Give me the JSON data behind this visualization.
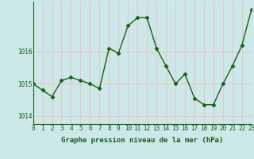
{
  "hours": [
    0,
    1,
    2,
    3,
    4,
    5,
    6,
    7,
    8,
    9,
    10,
    11,
    12,
    13,
    14,
    15,
    16,
    17,
    18,
    19,
    20,
    21,
    22,
    23
  ],
  "pressure": [
    1015.0,
    1014.8,
    1014.6,
    1015.1,
    1015.2,
    1015.1,
    1015.0,
    1014.85,
    1016.1,
    1015.95,
    1016.8,
    1017.05,
    1017.05,
    1016.1,
    1015.55,
    1015.0,
    1015.3,
    1014.55,
    1014.35,
    1014.35,
    1015.0,
    1015.55,
    1016.2,
    1017.3
  ],
  "line_color": "#1a5e1a",
  "marker": "D",
  "marker_size": 2.5,
  "bg_color": "#cce8e8",
  "grid_color": "#e8c8c8",
  "xlabel": "Graphe pression niveau de la mer (hPa)",
  "xlabel_color": "#1a5e1a",
  "tick_color": "#1a5e1a",
  "ylim": [
    1013.75,
    1017.55
  ],
  "yticks": [
    1014,
    1015,
    1016
  ],
  "xlim": [
    0,
    23
  ],
  "xticks": [
    0,
    1,
    2,
    3,
    4,
    5,
    6,
    7,
    8,
    9,
    10,
    11,
    12,
    13,
    14,
    15,
    16,
    17,
    18,
    19,
    20,
    21,
    22,
    23
  ],
  "axis_fontsize": 6.5,
  "tick_fontsize": 5.5,
  "linewidth": 1.0
}
